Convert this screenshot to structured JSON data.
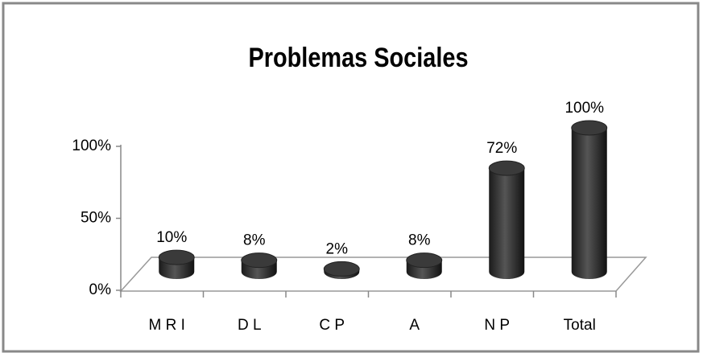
{
  "chart_data": {
    "type": "bar",
    "title": "Problemas Sociales",
    "categories": [
      "M R I",
      "D L",
      "C P",
      "A",
      "N P",
      "Total"
    ],
    "values": [
      10,
      8,
      2,
      8,
      72,
      100
    ],
    "value_labels": [
      "10%",
      "8%",
      "2%",
      "8%",
      "72%",
      "100%"
    ],
    "color": "#333333",
    "ylim": [
      0,
      100
    ],
    "yticks": [
      {
        "value": 0,
        "label": "0%"
      },
      {
        "value": 50,
        "label": "50%"
      },
      {
        "value": 100,
        "label": "100%"
      }
    ],
    "grid": false
  }
}
